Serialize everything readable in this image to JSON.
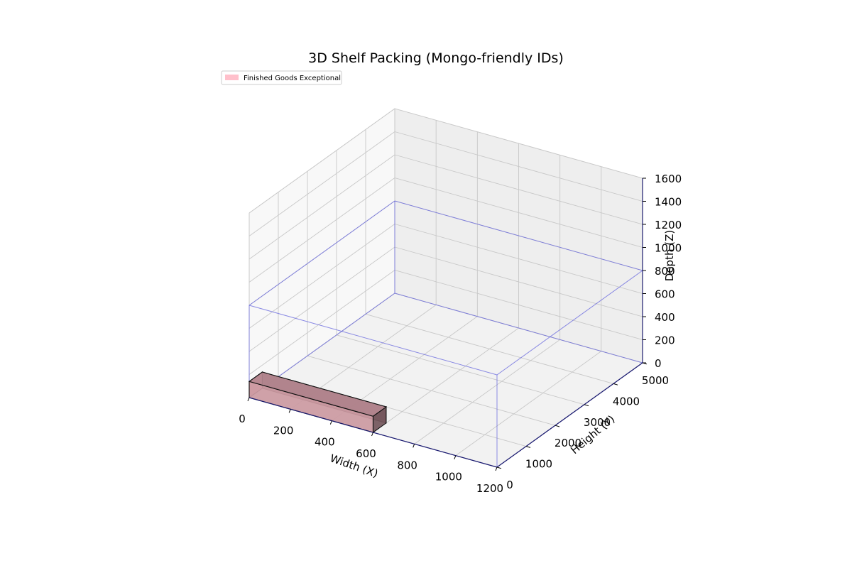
{
  "chart_data": {
    "type": "3d-box",
    "title": "3D Shelf Packing (Mongo-friendly IDs)",
    "xlabel": "Width (X)",
    "ylabel": "Height (Y)",
    "zlabel": "Depth (Z)",
    "xlim": [
      0,
      1200
    ],
    "ylim": [
      0,
      5000
    ],
    "zlim": [
      0,
      1600
    ],
    "x_ticks": [
      0,
      200,
      400,
      600,
      800,
      1000,
      1200
    ],
    "y_ticks": [
      0,
      1000,
      2000,
      3000,
      4000,
      5000
    ],
    "z_ticks": [
      0,
      200,
      400,
      600,
      800,
      1000,
      1200,
      1400,
      1600
    ],
    "grid": true,
    "legend": {
      "placement": "top-left",
      "entries": [
        {
          "label": "Finished Goods Exceptional",
          "color": "#ffc0cb"
        }
      ]
    },
    "shelf": {
      "x": [
        0,
        1200
      ],
      "y": [
        0,
        5000
      ],
      "z": [
        0,
        800
      ],
      "color": "#6666dd"
    },
    "boxes": [
      {
        "label": "Finished Goods Exceptional",
        "x": [
          0,
          600
        ],
        "y": [
          0,
          450
        ],
        "z": [
          0,
          140
        ],
        "color": "#ffc0cb"
      }
    ]
  }
}
